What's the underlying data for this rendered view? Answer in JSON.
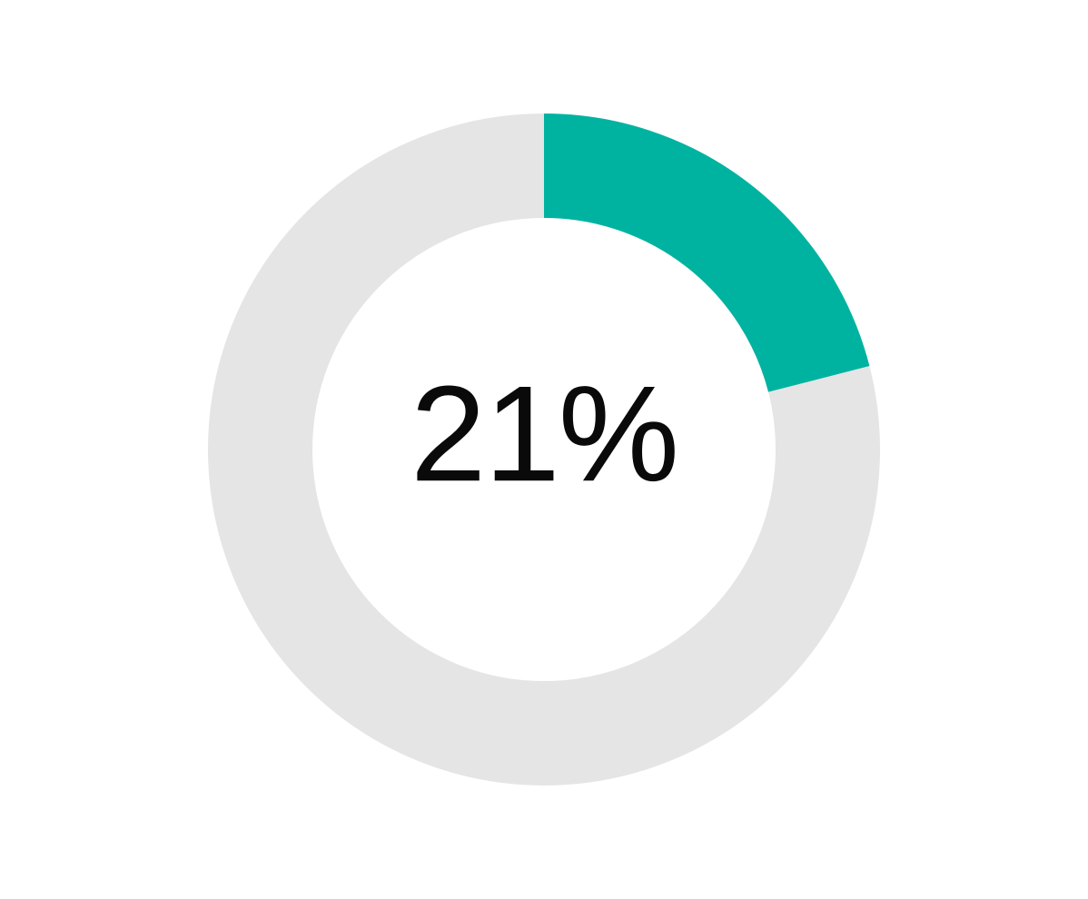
{
  "donut": {
    "type": "donut",
    "percent": 21,
    "label": "21%",
    "label_fontsize": 150,
    "label_color": "#0a0a0a",
    "label_fontweight": 400,
    "fill_color": "#00b3a1",
    "track_color": "#e5e5e5",
    "background_color": "#ffffff",
    "outer_radius": 370,
    "stroke_width": 115,
    "start_angle_deg": -90,
    "svg_size": 820
  }
}
